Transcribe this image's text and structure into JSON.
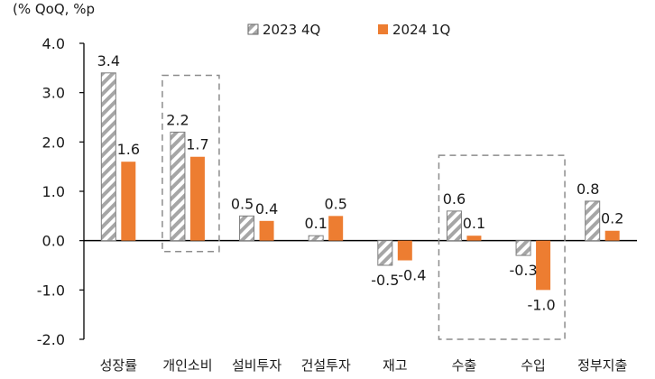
{
  "chart_data": {
    "type": "bar",
    "unit_label": "(% QoQ, %p",
    "categories": [
      "성장률",
      "개인소비",
      "설비투자",
      "건설투자",
      "재고",
      "수출",
      "수입",
      "정부지출"
    ],
    "series": [
      {
        "name": "2023 4Q",
        "color": "#a6a6a6",
        "pattern": "diagonal-hatch",
        "values": [
          3.4,
          2.2,
          0.5,
          0.1,
          -0.5,
          0.6,
          -0.3,
          0.8
        ],
        "labels": [
          "3.4",
          "2.2",
          "0.5",
          "0.1",
          "-0.5",
          "0.6",
          "-0.3",
          "0.8"
        ]
      },
      {
        "name": "2024 1Q",
        "color": "#ed7d31",
        "pattern": "solid",
        "values": [
          1.6,
          1.7,
          0.4,
          0.5,
          -0.4,
          0.1,
          -1.0,
          0.2
        ],
        "labels": [
          "1.6",
          "1.7",
          "0.4",
          "0.5",
          "-0.4",
          "0.1",
          "-1.0",
          "0.2"
        ]
      }
    ],
    "yticks": [
      "4.0",
      "3.0",
      "2.0",
      "1.0",
      "0.0",
      "-1.0",
      "-2.0"
    ],
    "ylim": [
      -2.0,
      4.0
    ],
    "highlight_boxes": [
      "개인소비",
      "수출-수입"
    ],
    "grid": false,
    "legend_position": "top"
  }
}
